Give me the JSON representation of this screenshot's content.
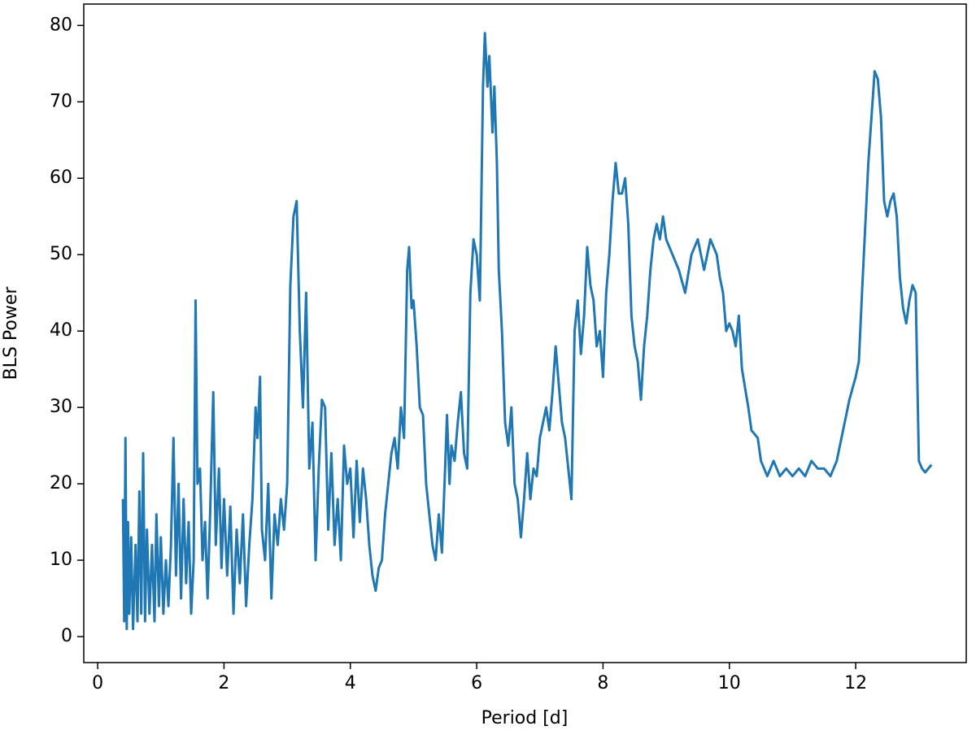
{
  "chart_data": {
    "type": "line",
    "xlabel": "Period [d]",
    "ylabel": "BLS Power",
    "color": "#1f77b4",
    "xlim": [
      -0.22,
      13.75
    ],
    "ylim": [
      -3.4,
      82.8
    ],
    "xticks": [
      0,
      2,
      4,
      6,
      8,
      10,
      12
    ],
    "yticks": [
      0,
      10,
      20,
      30,
      40,
      50,
      60,
      70,
      80
    ],
    "x": [
      0.4,
      0.42,
      0.44,
      0.46,
      0.48,
      0.5,
      0.53,
      0.56,
      0.6,
      0.63,
      0.66,
      0.69,
      0.72,
      0.75,
      0.78,
      0.82,
      0.86,
      0.9,
      0.93,
      0.97,
      1.0,
      1.04,
      1.08,
      1.12,
      1.16,
      1.2,
      1.24,
      1.28,
      1.32,
      1.36,
      1.4,
      1.44,
      1.48,
      1.52,
      1.55,
      1.58,
      1.62,
      1.66,
      1.7,
      1.74,
      1.78,
      1.83,
      1.87,
      1.92,
      1.96,
      2.0,
      2.05,
      2.1,
      2.15,
      2.2,
      2.25,
      2.3,
      2.35,
      2.4,
      2.45,
      2.5,
      2.53,
      2.57,
      2.6,
      2.65,
      2.7,
      2.75,
      2.8,
      2.85,
      2.9,
      2.95,
      3.0,
      3.05,
      3.1,
      3.15,
      3.2,
      3.25,
      3.3,
      3.35,
      3.4,
      3.45,
      3.5,
      3.55,
      3.6,
      3.65,
      3.7,
      3.75,
      3.8,
      3.85,
      3.9,
      3.95,
      4.0,
      4.05,
      4.1,
      4.15,
      4.2,
      4.25,
      4.3,
      4.35,
      4.4,
      4.45,
      4.5,
      4.55,
      4.6,
      4.65,
      4.7,
      4.75,
      4.8,
      4.85,
      4.9,
      4.93,
      4.97,
      5.0,
      5.05,
      5.1,
      5.15,
      5.2,
      5.25,
      5.3,
      5.35,
      5.4,
      5.45,
      5.5,
      5.53,
      5.57,
      5.6,
      5.65,
      5.7,
      5.75,
      5.8,
      5.85,
      5.9,
      5.95,
      6.0,
      6.05,
      6.1,
      6.13,
      6.17,
      6.2,
      6.25,
      6.28,
      6.32,
      6.35,
      6.4,
      6.45,
      6.5,
      6.55,
      6.6,
      6.65,
      6.7,
      6.75,
      6.8,
      6.85,
      6.9,
      6.95,
      7.0,
      7.05,
      7.1,
      7.15,
      7.2,
      7.25,
      7.3,
      7.35,
      7.4,
      7.45,
      7.5,
      7.55,
      7.6,
      7.65,
      7.7,
      7.75,
      7.8,
      7.85,
      7.9,
      7.95,
      8.0,
      8.05,
      8.1,
      8.15,
      8.2,
      8.25,
      8.3,
      8.35,
      8.4,
      8.45,
      8.5,
      8.55,
      8.6,
      8.65,
      8.7,
      8.75,
      8.8,
      8.85,
      8.9,
      8.95,
      9.0,
      9.1,
      9.2,
      9.3,
      9.4,
      9.5,
      9.6,
      9.7,
      9.8,
      9.85,
      9.9,
      9.95,
      10.0,
      10.05,
      10.1,
      10.15,
      10.2,
      10.3,
      10.35,
      10.45,
      10.5,
      10.6,
      10.7,
      10.8,
      10.9,
      11.0,
      11.1,
      11.2,
      11.3,
      11.4,
      11.5,
      11.6,
      11.7,
      11.8,
      11.9,
      12.0,
      12.05,
      12.1,
      12.2,
      12.3,
      12.35,
      12.4,
      12.45,
      12.5,
      12.55,
      12.6,
      12.65,
      12.7,
      12.75,
      12.8,
      12.85,
      12.9,
      12.95,
      13.0,
      13.05,
      13.1,
      13.15,
      13.2
    ],
    "values": [
      18,
      2,
      26,
      1,
      15,
      3,
      13,
      1,
      12,
      2,
      19,
      3,
      24,
      2,
      14,
      3,
      12,
      2,
      16,
      4,
      13,
      3,
      10,
      4,
      12,
      26,
      8,
      20,
      5,
      18,
      7,
      15,
      3,
      10,
      44,
      20,
      22,
      10,
      15,
      5,
      16,
      32,
      12,
      22,
      9,
      18,
      8,
      17,
      3,
      14,
      7,
      16,
      4,
      12,
      18,
      30,
      26,
      34,
      14,
      10,
      20,
      5,
      16,
      12,
      18,
      14,
      20,
      46,
      55,
      57,
      40,
      30,
      45,
      22,
      28,
      10,
      22,
      31,
      30,
      14,
      24,
      12,
      18,
      10,
      25,
      20,
      22,
      13,
      23,
      15,
      22,
      18,
      12,
      8,
      6,
      9,
      10,
      16,
      20,
      24,
      26,
      22,
      30,
      26,
      48,
      51,
      43,
      44,
      38,
      30,
      29,
      20,
      16,
      12,
      10,
      16,
      11,
      22,
      29,
      20,
      25,
      23,
      28,
      32,
      24,
      22,
      45,
      52,
      50,
      44,
      72,
      79,
      72,
      76,
      66,
      72,
      62,
      48,
      40,
      28,
      25,
      30,
      20,
      18,
      13,
      18,
      24,
      18,
      22,
      21,
      26,
      28,
      30,
      27,
      32,
      38,
      33,
      28,
      26,
      22,
      18,
      40,
      44,
      37,
      42,
      51,
      46,
      44,
      38,
      40,
      34,
      45,
      50,
      57,
      62,
      58,
      58,
      60,
      54,
      42,
      38,
      36,
      31,
      38,
      42,
      48,
      52,
      54,
      52,
      55,
      52,
      50,
      48,
      45,
      50,
      52,
      48,
      52,
      50,
      47,
      45,
      40,
      41,
      40,
      38,
      42,
      35,
      30,
      27,
      26,
      23,
      21,
      23,
      21,
      22,
      21,
      22,
      21,
      23,
      22,
      22,
      21,
      23,
      27,
      31,
      34,
      36,
      45,
      62,
      74,
      73,
      68,
      57,
      55,
      57,
      58,
      55,
      47,
      43,
      41,
      44,
      46,
      45,
      23,
      22,
      21.5,
      22,
      22.5
    ]
  }
}
